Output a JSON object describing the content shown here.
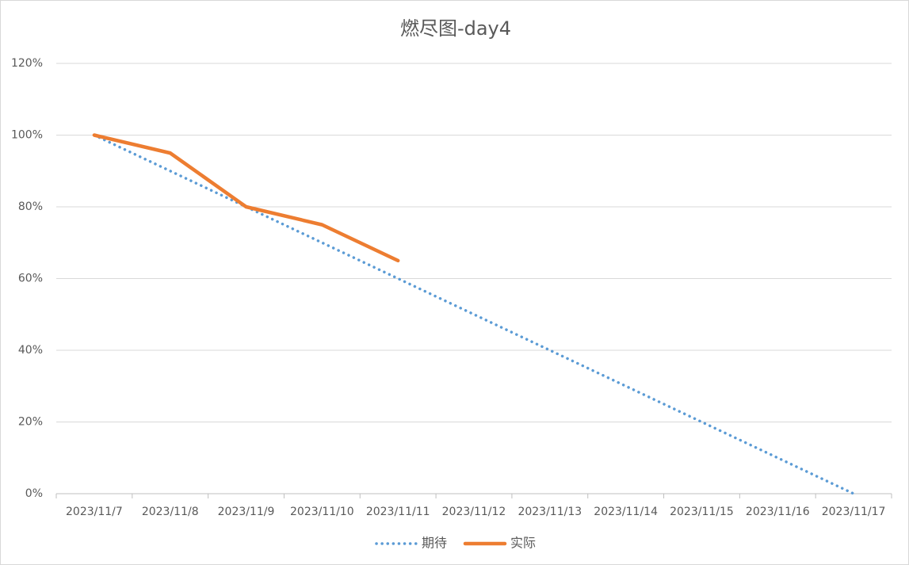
{
  "chart_data": {
    "type": "line",
    "title": "燃尽图-day4",
    "categories": [
      "2023/11/7",
      "2023/11/8",
      "2023/11/9",
      "2023/11/10",
      "2023/11/11",
      "2023/11/12",
      "2023/11/13",
      "2023/11/14",
      "2023/11/15",
      "2023/11/16",
      "2023/11/17"
    ],
    "series": [
      {
        "name": "期待",
        "color": "#5b9bd5",
        "dash": true,
        "values": [
          100,
          90,
          80,
          70,
          60,
          50,
          40,
          30,
          20,
          10,
          0
        ]
      },
      {
        "name": "实际",
        "color": "#ed7d31",
        "dash": false,
        "values": [
          100,
          95,
          80,
          75,
          65,
          null,
          null,
          null,
          null,
          null,
          null
        ]
      }
    ],
    "ylim": [
      0,
      120
    ],
    "yticks": [
      {
        "value": 0,
        "label": "0%"
      },
      {
        "value": 20,
        "label": "20%"
      },
      {
        "value": 40,
        "label": "40%"
      },
      {
        "value": 60,
        "label": "60%"
      },
      {
        "value": 80,
        "label": "80%"
      },
      {
        "value": 100,
        "label": "100%"
      },
      {
        "value": 120,
        "label": "120%"
      }
    ],
    "grid": true,
    "legend": "bottom"
  }
}
